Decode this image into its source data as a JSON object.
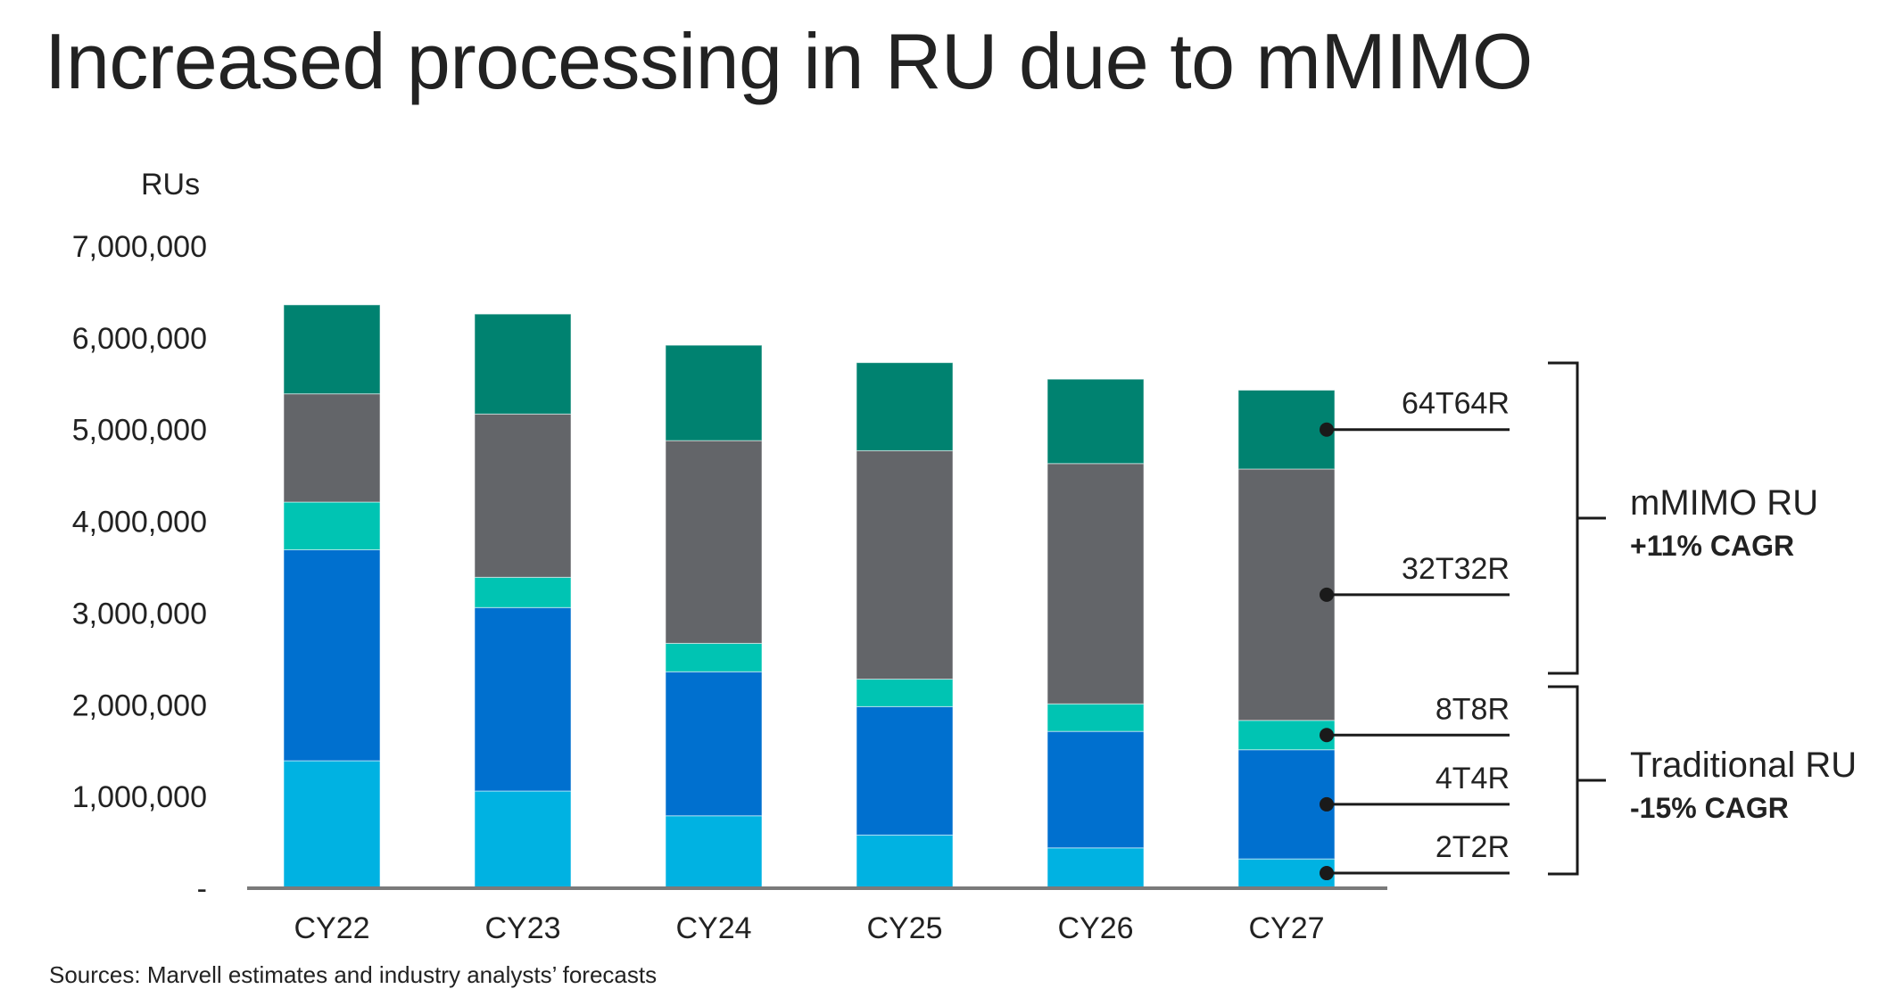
{
  "title": "Increased processing in RU due to mMIMO",
  "source": "Sources: Marvell estimates and industry analysts’ forecasts",
  "chart_data": {
    "type": "bar",
    "stacked": true,
    "ylabel": "RUs",
    "ylim": [
      0,
      7000000
    ],
    "yticks": [
      0,
      1000000,
      2000000,
      3000000,
      4000000,
      5000000,
      6000000,
      7000000
    ],
    "ytick_labels": [
      "-",
      "1,000,000",
      "2,000,000",
      "3,000,000",
      "4,000,000",
      "5,000,000",
      "6,000,000",
      "7,000,000"
    ],
    "categories": [
      "CY22",
      "CY23",
      "CY24",
      "CY25",
      "CY26",
      "CY27"
    ],
    "series": [
      {
        "name": "2T2R",
        "color": "#00b2e2",
        "values": [
          1380000,
          1050000,
          780000,
          570000,
          430000,
          310000
        ]
      },
      {
        "name": "4T4R",
        "color": "#0070cf",
        "values": [
          2300000,
          2000000,
          1570000,
          1400000,
          1270000,
          1190000
        ]
      },
      {
        "name": "8T8R",
        "color": "#00c4b3",
        "values": [
          520000,
          330000,
          310000,
          300000,
          300000,
          320000
        ]
      },
      {
        "name": "32T32R",
        "color": "#636569",
        "values": [
          1180000,
          1780000,
          2210000,
          2490000,
          2620000,
          2740000
        ]
      },
      {
        "name": "64T64R",
        "color": "#008270",
        "values": [
          970000,
          1090000,
          1040000,
          960000,
          920000,
          860000
        ]
      }
    ],
    "series_labels": [
      "64T64R",
      "32T32R",
      "8T8R",
      "4T4R",
      "2T2R"
    ],
    "groups": [
      {
        "name": "mMIMO RU",
        "cagr": "+11% CAGR"
      },
      {
        "name": "Traditional RU",
        "cagr": "-15% CAGR"
      }
    ]
  }
}
